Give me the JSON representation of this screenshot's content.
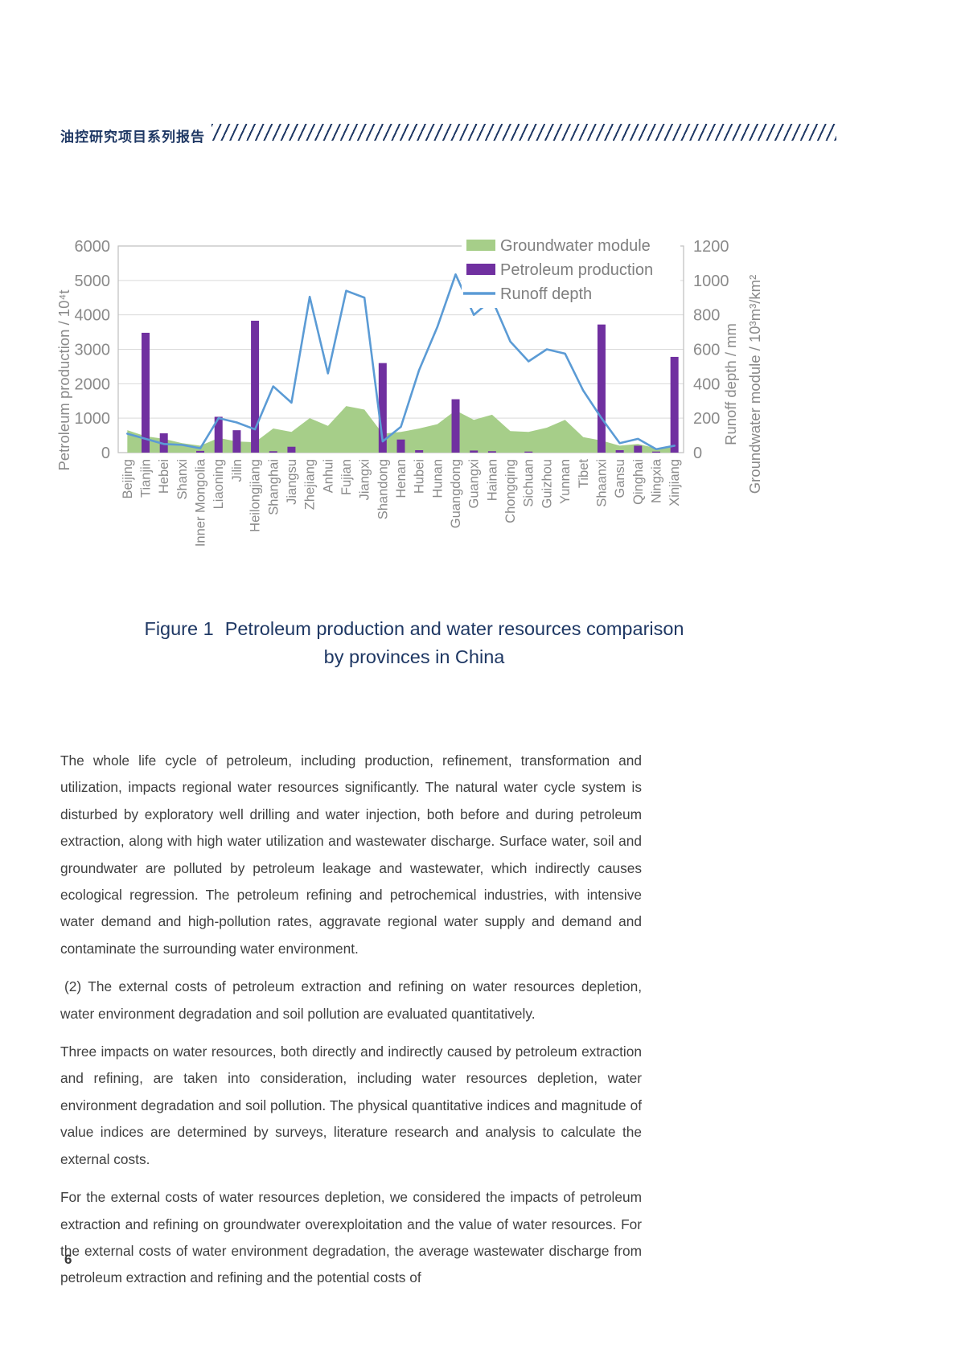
{
  "page": {
    "header": {
      "series_title": "油控研究项目系列报告"
    },
    "caption": {
      "label": "Figure 1",
      "line1": "Petroleum production and water resources comparison",
      "line2": "by provinces in China"
    },
    "paragraphs": [
      "The whole life cycle of petroleum, including production, refinement, transformation and utilization, impacts regional water resources significantly. The natural water cycle system is disturbed by exploratory well drilling and water injection, both before and during petroleum extraction, along with high water utilization and wastewater discharge. Surface water, soil and groundwater are polluted by petroleum leakage and wastewater, which indirectly causes ecological regression. The petroleum refining and petrochemical industries, with intensive water demand and high-pollution rates, aggravate regional water supply and demand and contaminate the surrounding water environment.",
      "(2) The external costs of petroleum extraction and refining on water resources depletion, water environment degradation and soil pollution are evaluated quantitatively.",
      "Three impacts on water resources, both directly and indirectly caused by petroleum extraction and refining, are taken into consideration, including water resources depletion, water environment degradation and soil pollution. The physical quantitative indices and magnitude of value indices are determined by surveys, literature research and analysis to calculate the external costs.",
      "For the external costs of water resources depletion, we considered the impacts of petroleum extraction and refining on groundwater overexploitation and the value of water resources. For the external costs of water environment degradation, the average wastewater discharge from petroleum extraction and refining and the potential costs of"
    ],
    "page_number": "6"
  },
  "chart_data": {
    "type": "combo",
    "categories": [
      "Beijing",
      "Tianjin",
      "Hebei",
      "Shanxi",
      "Inner Mongolia",
      "Liaoning",
      "Jilin",
      "Heilongjiang",
      "Shanghai",
      "Jiangsu",
      "Zhejiang",
      "Anhui",
      "Fujian",
      "Jiangxi",
      "Shandong",
      "Henan",
      "Hubei",
      "Hunan",
      "Guangdong",
      "Guangxi",
      "Hainan",
      "Chongqing",
      "Sichuan",
      "Guizhou",
      "Yunnan",
      "Tibet",
      "Shaanxi",
      "Gansu",
      "Qinghai",
      "Ningxia",
      "Xinjiang"
    ],
    "series": [
      {
        "name": "Groundwater module",
        "type": "area",
        "axis": "right",
        "color": "#A6CE89",
        "values": [
          130,
          95,
          80,
          55,
          40,
          85,
          65,
          60,
          140,
          120,
          200,
          155,
          270,
          250,
          110,
          120,
          140,
          165,
          245,
          190,
          220,
          125,
          120,
          145,
          190,
          90,
          70,
          40,
          50,
          25,
          35
        ]
      },
      {
        "name": "Petroleum production",
        "type": "bar",
        "axis": "left",
        "color": "#7030A0",
        "values": [
          0,
          3480,
          560,
          0,
          50,
          1040,
          650,
          3830,
          40,
          170,
          0,
          0,
          0,
          0,
          2600,
          380,
          70,
          0,
          1550,
          60,
          40,
          0,
          30,
          0,
          0,
          0,
          3720,
          70,
          200,
          30,
          2780
        ]
      },
      {
        "name": "Runoff depth",
        "type": "line",
        "axis": "right",
        "color": "#5B9BD5",
        "values": [
          110,
          80,
          50,
          45,
          25,
          200,
          175,
          135,
          385,
          290,
          905,
          460,
          940,
          900,
          65,
          150,
          480,
          730,
          1035,
          800,
          890,
          645,
          530,
          600,
          575,
          360,
          200,
          55,
          80,
          20,
          40
        ]
      }
    ],
    "left_axis": {
      "title": "Petroleum production / 10⁴t",
      "min": 0,
      "max": 6000,
      "step": 1000
    },
    "right_axis": {
      "title_runoff": "Runoff depth / mm",
      "title_groundwater": "Groundwater module / 10³m³/km²",
      "min": 0,
      "max": 1200,
      "step": 200
    },
    "legend": [
      "Groundwater module",
      "Petroleum production",
      "Runoff depth"
    ],
    "legend_position": "inside-top-right",
    "grid": true
  },
  "style_colors": {
    "header_navy": "#1F3864",
    "caption_navy": "#1F3864",
    "body_text": "#3F3F3F",
    "axis_gray": "#8A8A8A",
    "gridline": "#D9D9D9",
    "plot_border": "#BFBFBF",
    "legend_text": "#7F7F7F"
  }
}
